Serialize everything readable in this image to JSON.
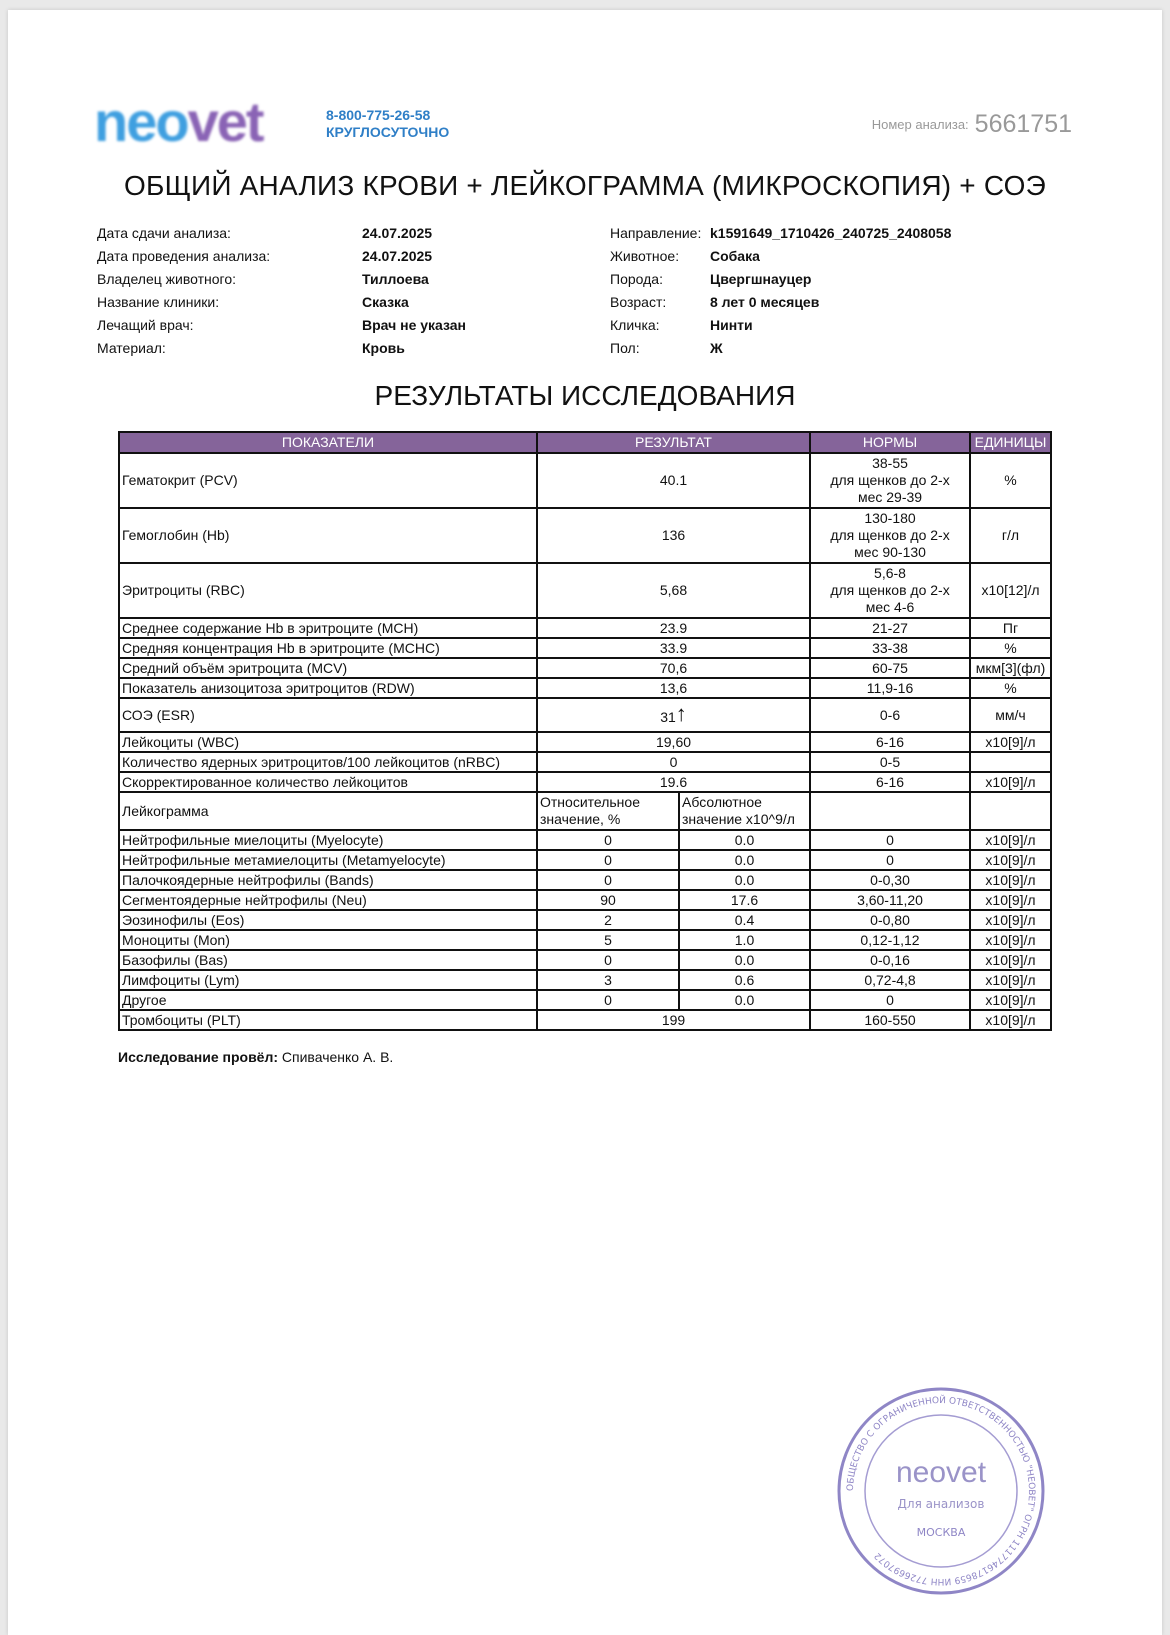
{
  "header": {
    "logo_text": "neovet",
    "phone": "8-800-775-26-58",
    "phone_note": "КРУГЛОСУТОЧНО",
    "analysis_number_label": "Номер анализа:",
    "analysis_number": "5661751"
  },
  "title": "ОБЩИЙ АНАЛИЗ КРОВИ + ЛЕЙКОГРАММА (МИКРОСКОПИЯ) + СОЭ",
  "info_left": [
    {
      "label": "Дата сдачи анализа:",
      "value": "24.07.2025"
    },
    {
      "label": "Дата проведения анализа:",
      "value": "24.07.2025"
    },
    {
      "label": "Владелец животного:",
      "value": "Тиллоева"
    },
    {
      "label": "Название клиники:",
      "value": "Сказка"
    },
    {
      "label": "Лечащий врач:",
      "value": "Врач не указан"
    },
    {
      "label": "Материал:",
      "value": "Кровь"
    }
  ],
  "info_right": [
    {
      "label": "Направление:",
      "value": "k1591649_1710426_240725_2408058"
    },
    {
      "label": "Животное:",
      "value": "Собака"
    },
    {
      "label": "Порода:",
      "value": "Цвергшнауцер"
    },
    {
      "label": "Возраст:",
      "value": "8 лет 0 месяцев"
    },
    {
      "label": "Кличка:",
      "value": "Нинти"
    },
    {
      "label": "Пол:",
      "value": "Ж"
    }
  ],
  "results_title": "РЕЗУЛЬТАТЫ ИССЛЕДОВАНИЯ",
  "table": {
    "header_color": "#85649a",
    "columns": [
      "ПОКАЗАТЕЛИ",
      "РЕЗУЛЬТАТ",
      "НОРМЫ",
      "ЕДИНИЦЫ"
    ],
    "rows": [
      {
        "name": "Гематокрит (PCV)",
        "result": "40.1",
        "norm": [
          "38-55",
          "для щенков до 2-х",
          "мес 29-39"
        ],
        "unit": "%"
      },
      {
        "name": "Гемоглобин (Hb)",
        "result": "136",
        "norm": [
          "130-180",
          "для щенков до 2-х",
          "мес 90-130"
        ],
        "unit": "г/л"
      },
      {
        "name": "Эритроциты (RBC)",
        "result": "5,68",
        "norm": [
          "5,6-8",
          "для щенков до 2-х",
          "мес 4-6"
        ],
        "unit": "x10[12]/л"
      },
      {
        "name": "Среднее содержание Hb в эритроците (MCH)",
        "result": "23.9",
        "norm": [
          "21-27"
        ],
        "unit": "Пг"
      },
      {
        "name": "Средняя концентрация Hb в эритроците (MCHC)",
        "result": "33.9",
        "norm": [
          "33-38"
        ],
        "unit": "%"
      },
      {
        "name": "Средний объём эритроцита (MCV)",
        "result": "70,6",
        "norm": [
          "60-75"
        ],
        "unit": "мкм[3](фл)"
      },
      {
        "name": "Показатель анизоцитоза эритроцитов (RDW)",
        "result": "13,6",
        "norm": [
          "11,9-16"
        ],
        "unit": "%"
      },
      {
        "name": "СОЭ (ESR)",
        "result": "31",
        "flag": "↑",
        "norm": [
          "0-6"
        ],
        "unit": "мм/ч"
      },
      {
        "name": "Лейкоциты (WBC)",
        "result": "19,60",
        "norm": [
          "6-16"
        ],
        "unit": "x10[9]/л"
      },
      {
        "name": "Количество ядерных эритроцитов/100 лейкоцитов (nRBC)",
        "result": "0",
        "norm": [
          "0-5"
        ],
        "unit": ""
      },
      {
        "name": "Скорректированное количество лейкоцитов",
        "result": "19.6",
        "norm": [
          "6-16"
        ],
        "unit": "x10[9]/л"
      }
    ],
    "leukogram": {
      "name": "Лейкограмма",
      "relative_label": "Относительное значение, %",
      "absolute_label": "Абсолютное значение x10^9/л",
      "rows": [
        {
          "name": "Нейтрофильные миелоциты (Myelocyte)",
          "relative": "0",
          "absolute": "0.0",
          "norm": "0",
          "unit": "x10[9]/л"
        },
        {
          "name": "Нейтрофильные метамиелоциты (Metamyelocyte)",
          "relative": "0",
          "absolute": "0.0",
          "norm": "0",
          "unit": "x10[9]/л"
        },
        {
          "name": "Палочкоядерные нейтрофилы (Bands)",
          "relative": "0",
          "absolute": "0.0",
          "norm": "0-0,30",
          "unit": "x10[9]/л"
        },
        {
          "name": "Сегментоядерные нейтрофилы (Neu)",
          "relative": "90",
          "absolute": "17.6",
          "norm": "3,60-11,20",
          "unit": "x10[9]/л"
        },
        {
          "name": "Эозинофилы (Eos)",
          "relative": "2",
          "absolute": "0.4",
          "norm": "0-0,80",
          "unit": "x10[9]/л"
        },
        {
          "name": "Моноциты (Mon)",
          "relative": "5",
          "absolute": "1.0",
          "norm": "0,12-1,12",
          "unit": "x10[9]/л"
        },
        {
          "name": "Базофилы (Bas)",
          "relative": "0",
          "absolute": "0.0",
          "norm": "0-0,16",
          "unit": "x10[9]/л"
        },
        {
          "name": "Лимфоциты (Lym)",
          "relative": "3",
          "absolute": "0.6",
          "norm": "0,72-4,8",
          "unit": "x10[9]/л"
        },
        {
          "name": "Другое",
          "relative": "0",
          "absolute": "0.0",
          "norm": "0",
          "unit": "x10[9]/л"
        }
      ]
    },
    "platelets": {
      "name": "Тромбоциты (PLT)",
      "result": "199",
      "norm": "160-550",
      "unit": "x10[9]/л"
    }
  },
  "footer": {
    "performed_by_label": "Исследование провёл:",
    "performed_by": "Спиваченко А. В."
  },
  "stamp": {
    "outer_text": "ОБЩЕСТВО С ОГРАНИЧЕННОЙ ОТВЕТСТВЕННОСТЬЮ \"НЕОВЕТ\" ОГРН 1117746178659 ИНН 7726697072",
    "logo": "neovet",
    "center": "Для анализов",
    "city": "МОСКВА"
  }
}
